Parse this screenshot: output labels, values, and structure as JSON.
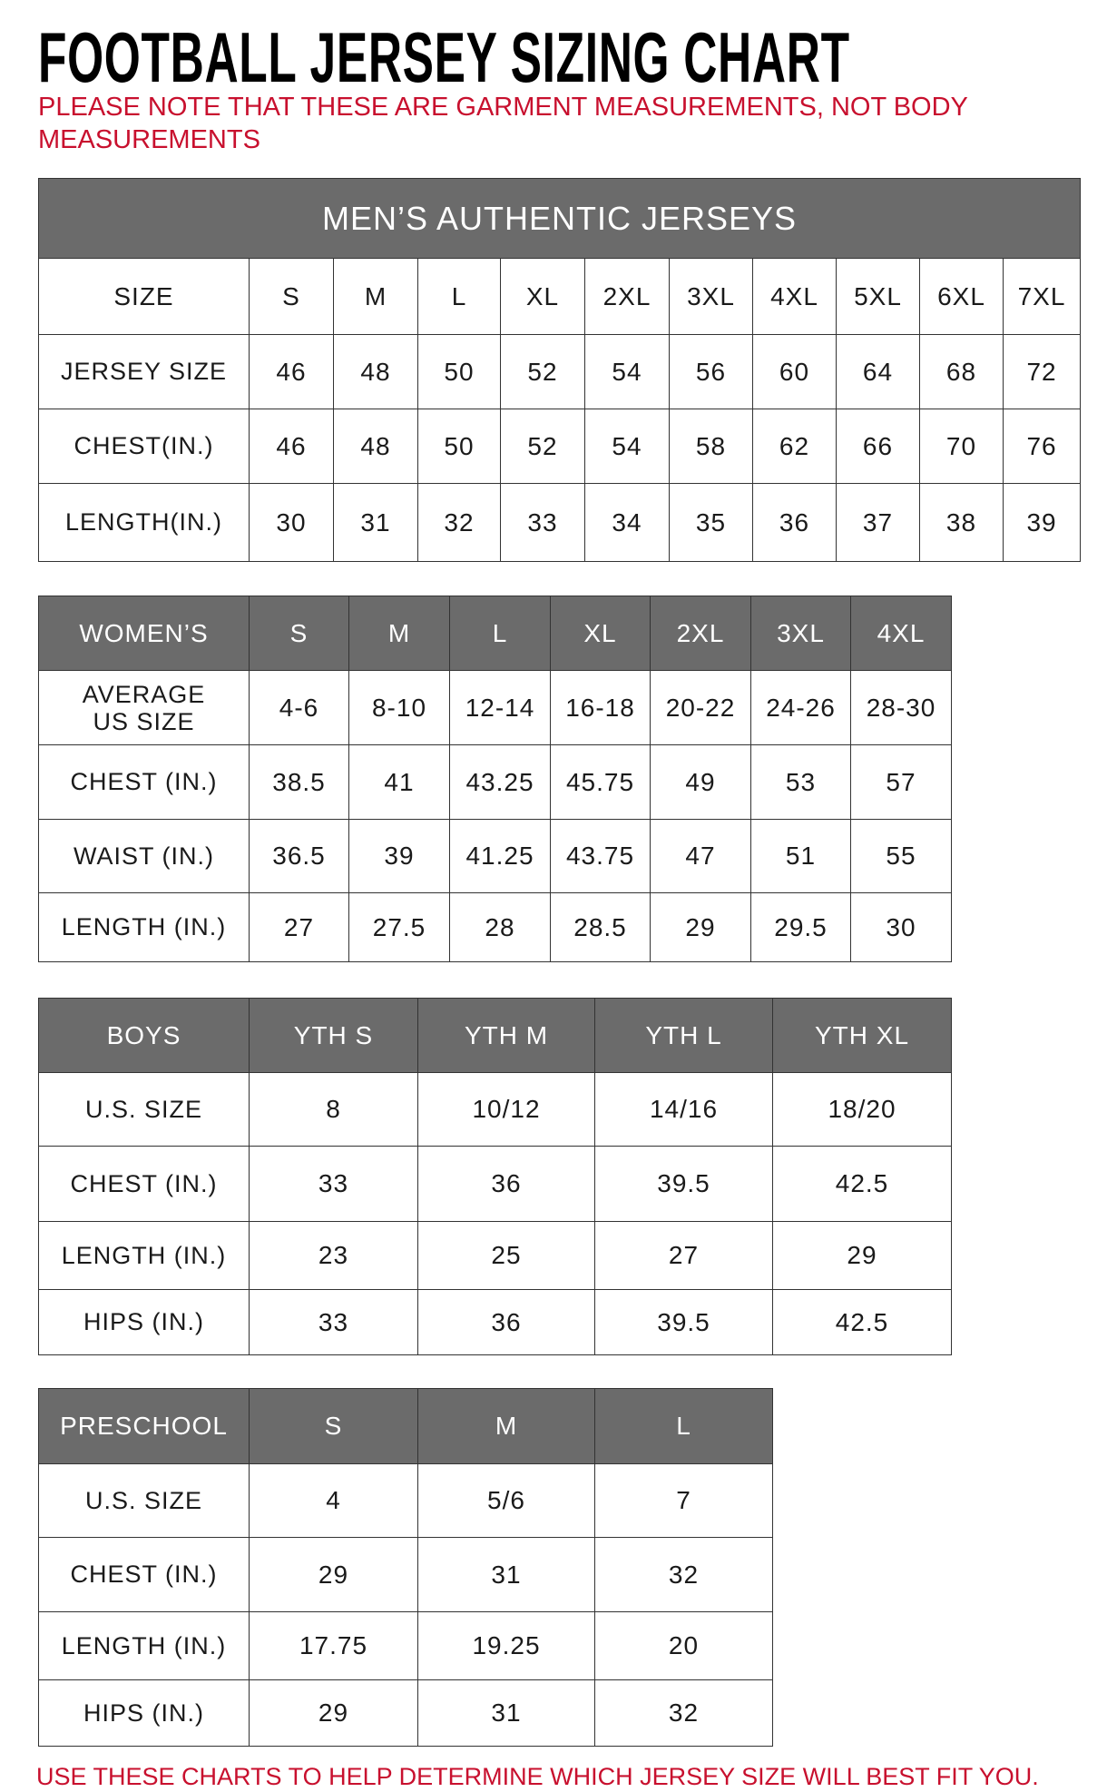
{
  "title": "FOOTBALL JERSEY SIZING CHART",
  "note": "PLEASE NOTE THAT THESE ARE GARMENT MEASUREMENTS, NOT BODY MEASUREMENTS",
  "footer": "USE THESE CHARTS TO HELP DETERMINE WHICH JERSEY SIZE WILL BEST FIT YOU.",
  "colors": {
    "header_bg": "#6b6b6b",
    "accent_red": "#c8102e"
  },
  "tables": [
    {
      "title": "MEN’S AUTHENTIC JERSEYS",
      "header": [
        "SIZE",
        "S",
        "M",
        "L",
        "XL",
        "2XL",
        "3XL",
        "4XL",
        "5XL",
        "6XL",
        "7XL"
      ],
      "rows": [
        [
          "JERSEY SIZE",
          "46",
          "48",
          "50",
          "52",
          "54",
          "56",
          "60",
          "64",
          "68",
          "72"
        ],
        [
          "CHEST(IN.)",
          "46",
          "48",
          "50",
          "52",
          "54",
          "58",
          "62",
          "66",
          "70",
          "76"
        ],
        [
          "LENGTH(IN.)",
          "30",
          "31",
          "32",
          "33",
          "34",
          "35",
          "36",
          "37",
          "38",
          "39"
        ]
      ]
    },
    {
      "header": [
        "WOMEN’S",
        "S",
        "M",
        "L",
        "XL",
        "2XL",
        "3XL",
        "4XL"
      ],
      "rows": [
        [
          "AVERAGE US SIZE",
          "4-6",
          "8-10",
          "12-14",
          "16-18",
          "20-22",
          "24-26",
          "28-30"
        ],
        [
          "CHEST (IN.)",
          "38.5",
          "41",
          "43.25",
          "45.75",
          "49",
          "53",
          "57"
        ],
        [
          "WAIST (IN.)",
          "36.5",
          "39",
          "41.25",
          "43.75",
          "47",
          "51",
          "55"
        ],
        [
          "LENGTH (IN.)",
          "27",
          "27.5",
          "28",
          "28.5",
          "29",
          "29.5",
          "30"
        ]
      ]
    },
    {
      "header": [
        "BOYS",
        "YTH S",
        "YTH M",
        "YTH L",
        "YTH XL"
      ],
      "rows": [
        [
          "U.S. SIZE",
          "8",
          "10/12",
          "14/16",
          "18/20"
        ],
        [
          "CHEST (IN.)",
          "33",
          "36",
          "39.5",
          "42.5"
        ],
        [
          "LENGTH (IN.)",
          "23",
          "25",
          "27",
          "29"
        ],
        [
          "HIPS (IN.)",
          "33",
          "36",
          "39.5",
          "42.5"
        ]
      ]
    },
    {
      "header": [
        "PRESCHOOL",
        "S",
        "M",
        "L"
      ],
      "rows": [
        [
          "U.S. SIZE",
          "4",
          "5/6",
          "7"
        ],
        [
          "CHEST (IN.)",
          "29",
          "31",
          "32"
        ],
        [
          "LENGTH (IN.)",
          "17.75",
          "19.25",
          "20"
        ],
        [
          "HIPS (IN.)",
          "29",
          "31",
          "32"
        ]
      ]
    }
  ]
}
